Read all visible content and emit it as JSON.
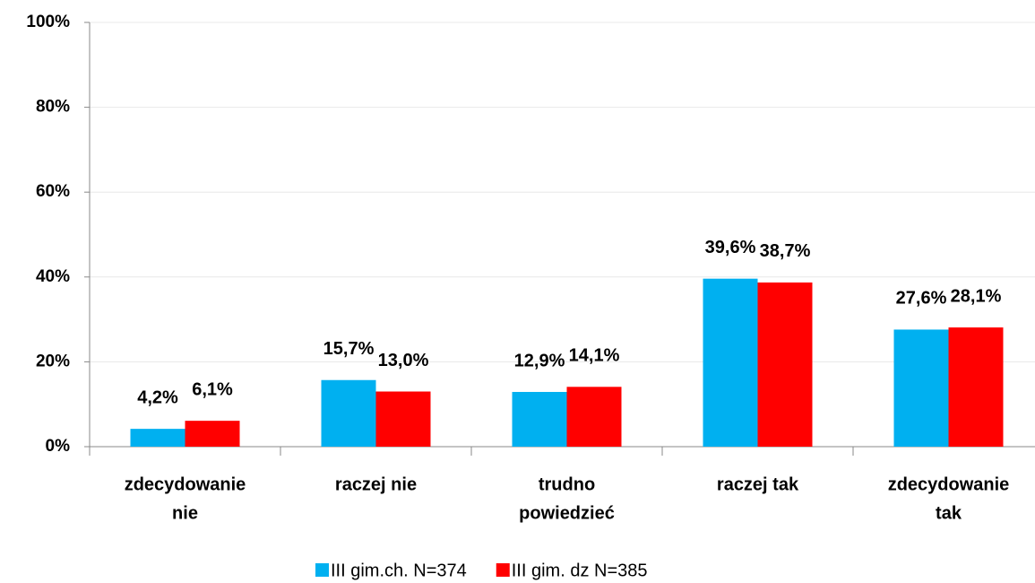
{
  "chart_data": {
    "type": "bar",
    "categories": [
      [
        "zdecydowanie",
        "nie"
      ],
      [
        "raczej nie"
      ],
      [
        "trudno",
        "powiedzieć"
      ],
      [
        "raczej tak"
      ],
      [
        "zdecydowanie",
        "tak"
      ]
    ],
    "series": [
      {
        "name": "III gim.ch. N=374",
        "color": "#00b0f0",
        "values": [
          4.2,
          15.7,
          12.9,
          39.6,
          27.6
        ],
        "value_labels": [
          "4,2%",
          "15,7%",
          "12,9%",
          "39,6%",
          "27,6%"
        ]
      },
      {
        "name": "III gim. dz N=385",
        "color": "#ff0000",
        "values": [
          6.1,
          13.0,
          14.1,
          38.7,
          28.1
        ],
        "value_labels": [
          "6,1%",
          "13,0%",
          "14,1%",
          "38,7%",
          "28,1%"
        ]
      }
    ],
    "ylim": [
      0,
      100
    ],
    "yticks": [
      {
        "value": 0,
        "label": "0%"
      },
      {
        "value": 20,
        "label": "20%"
      },
      {
        "value": 40,
        "label": "40%"
      },
      {
        "value": 60,
        "label": "60%"
      },
      {
        "value": 80,
        "label": "80%"
      },
      {
        "value": 100,
        "label": "100%"
      }
    ],
    "grid": true,
    "legend": "bottom"
  }
}
